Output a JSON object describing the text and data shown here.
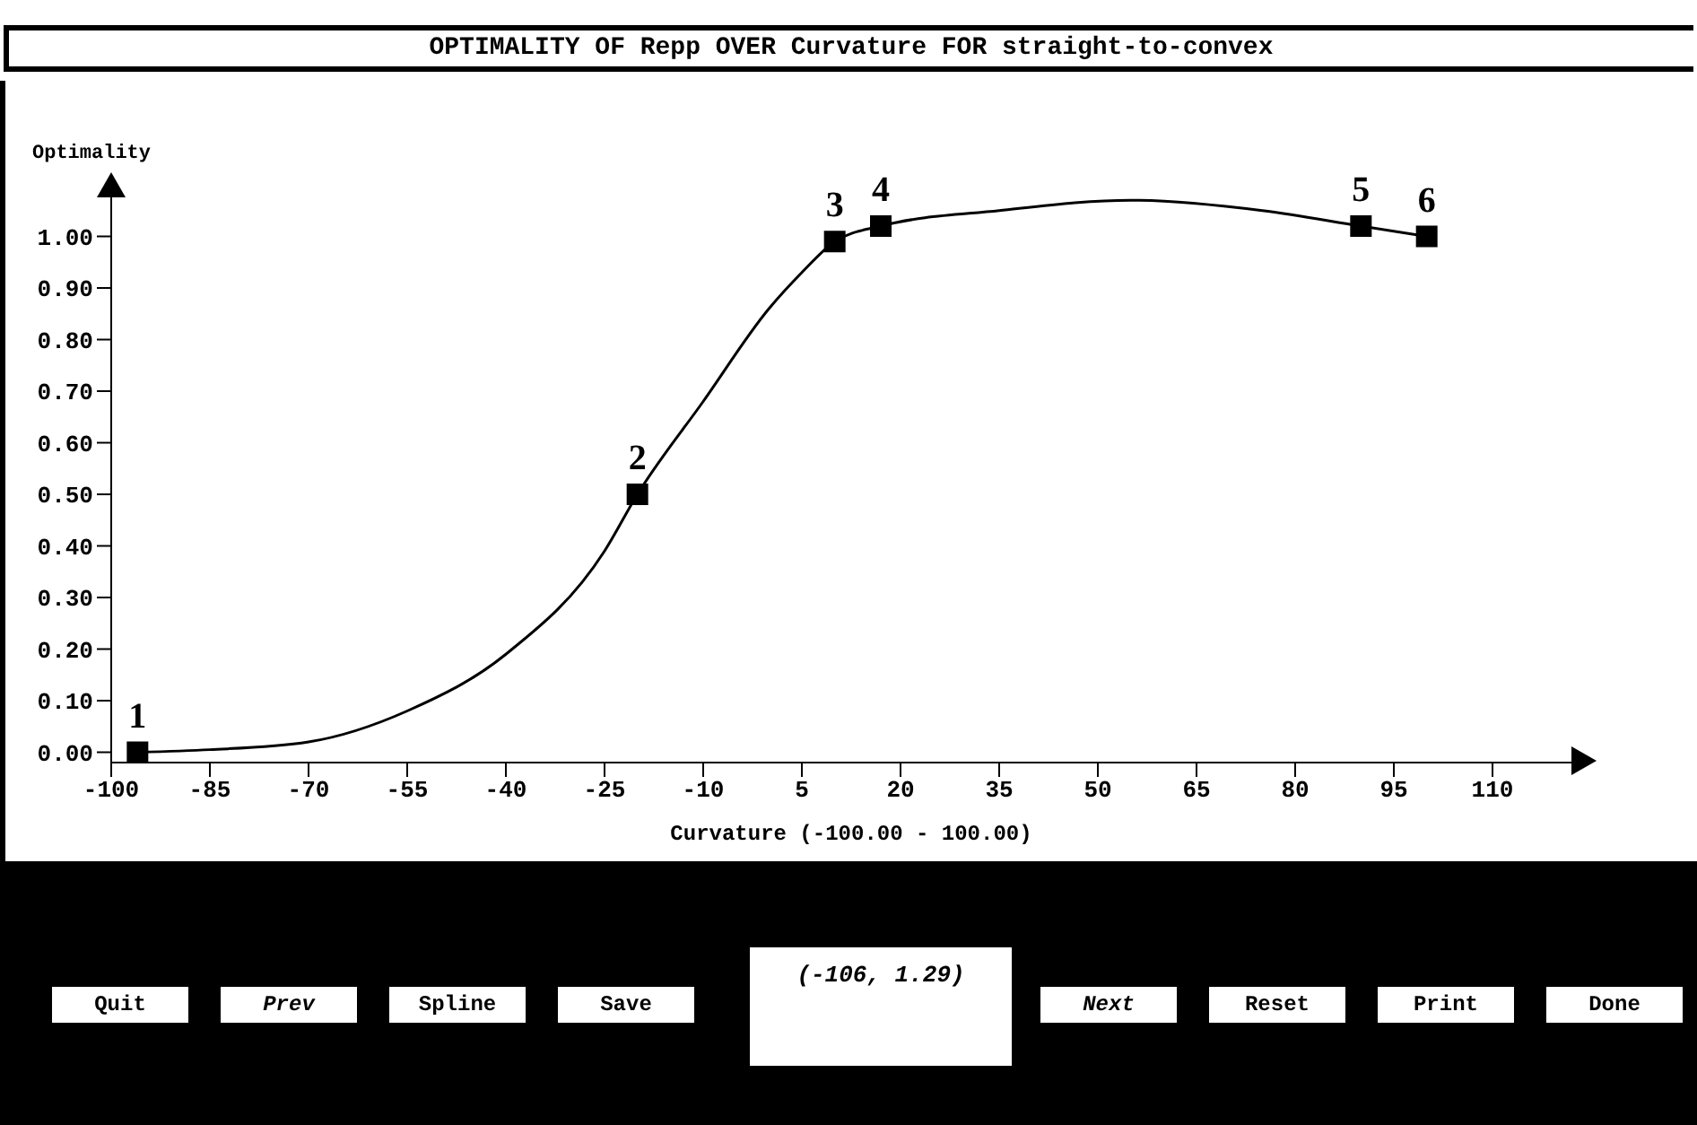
{
  "chart_data": {
    "type": "line",
    "title": "OPTIMALITY OF Repp OVER Curvature FOR straight-to-convex",
    "xlabel": "Curvature (-100.00 - 100.00)",
    "ylabel": "Optimality",
    "xlim": [
      -100,
      125
    ],
    "xticks": [
      -100,
      -85,
      -70,
      -55,
      -40,
      -25,
      -10,
      5,
      20,
      35,
      50,
      65,
      80,
      95,
      110
    ],
    "ylim": [
      -0.02,
      1.1
    ],
    "yticks": [
      {
        "value": 0,
        "label": "0.00"
      },
      {
        "value": 0.1,
        "label": "0.10"
      },
      {
        "value": 0.2,
        "label": "0.20"
      },
      {
        "value": 0.3,
        "label": "0.30"
      },
      {
        "value": 0.4,
        "label": "0.40"
      },
      {
        "value": 0.5,
        "label": "0.50"
      },
      {
        "value": 0.6,
        "label": "0.60"
      },
      {
        "value": 0.7,
        "label": "0.70"
      },
      {
        "value": 0.8,
        "label": "0.80"
      },
      {
        "value": 0.9,
        "label": "0.90"
      },
      {
        "value": 1,
        "label": "1.00"
      }
    ],
    "series": [
      {
        "color": "#000000",
        "marker": "none",
        "x": [
          -96,
          -85,
          -70,
          -55,
          -40,
          -25,
          -20,
          -10,
          0,
          5,
          10,
          17,
          35,
          55,
          75,
          90,
          100
        ],
        "values": [
          0,
          0.005,
          0.02,
          0.08,
          0.19,
          0.39,
          0.5,
          0.68,
          0.86,
          0.93,
          0.99,
          1.02,
          1.05,
          1.07,
          1.05,
          1.02,
          1.0
        ]
      },
      {
        "type": "scatter",
        "color": "#000000",
        "marker": "square",
        "x": [
          -96,
          -20,
          10,
          17,
          90,
          100
        ],
        "values": [
          0,
          0.5,
          0.99,
          1.02,
          1.02,
          1.0
        ]
      }
    ],
    "annotations": [
      {
        "text": "1",
        "x": -96,
        "y": 0
      },
      {
        "text": "2",
        "x": -20,
        "y": 0.5
      },
      {
        "text": "3",
        "x": 10,
        "y": 0.99
      },
      {
        "text": "4",
        "x": 17,
        "y": 1.02
      },
      {
        "text": "5",
        "x": 90,
        "y": 1.02
      },
      {
        "text": "6",
        "x": 100,
        "y": 1.0
      },
      "Quit",
      "Prev",
      "Spline",
      "Save",
      "(-106, 1.29)",
      "Next",
      "Reset",
      "Print",
      "Done"
    ]
  }
}
